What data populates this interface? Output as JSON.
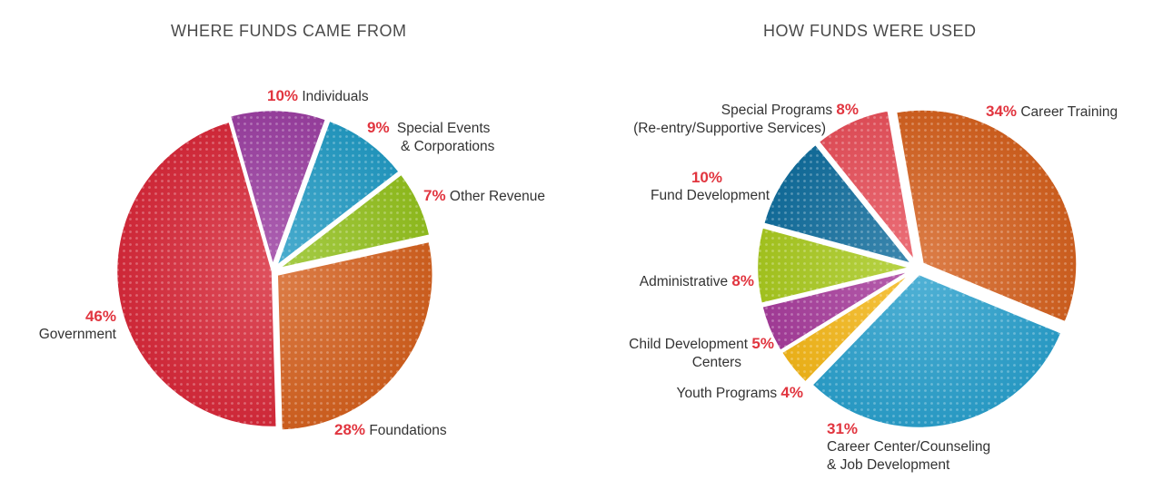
{
  "colors": {
    "accent_percent": "#e1353f",
    "title": "#4a4a4a",
    "label": "#333333"
  },
  "chart_data": [
    {
      "type": "pie",
      "title": "WHERE FUNDS CAME FROM",
      "categories": [
        "Individuals",
        "Special Events & Corporations",
        "Other Revenue",
        "Foundations",
        "Government"
      ],
      "values": [
        10,
        9,
        7,
        28,
        46
      ],
      "value_labels": [
        "10%",
        "9%",
        "7%",
        "28%",
        "46%"
      ],
      "label_lines": [
        [
          "Individuals"
        ],
        [
          "Special Events",
          "& Corporations"
        ],
        [
          "Other Revenue"
        ],
        [
          "Foundations"
        ],
        [
          "Government"
        ]
      ],
      "colors": [
        "#9b3fa1",
        "#239bc4",
        "#93c11e",
        "#d4611f",
        "#d8293a"
      ],
      "start_angle_deg": -16,
      "clockwise": true,
      "exploded": [
        "Individuals",
        "Special Events & Corporations",
        "Other Revenue",
        "Foundations"
      ]
    },
    {
      "type": "pie",
      "title": "HOW FUNDS WERE USED",
      "categories": [
        "Career Training",
        "Career Center/Counseling & Job Development",
        "Youth Programs",
        "Child Development Centers",
        "Administrative",
        "Fund Development",
        "Special Programs (Re-entry/Supportive Services)"
      ],
      "values": [
        34,
        31,
        4,
        5,
        8,
        10,
        8
      ],
      "value_labels": [
        "34%",
        "31%",
        "4%",
        "5%",
        "8%",
        "10%",
        "8%"
      ],
      "label_lines": [
        [
          "Career Training"
        ],
        [
          "Career Center/Counseling",
          "& Job Development"
        ],
        [
          "Youth Programs"
        ],
        [
          "Child Development",
          "Centers"
        ],
        [
          "Administrative"
        ],
        [
          "Fund Development"
        ],
        [
          "Special Programs",
          "(Re-entry/Supportive Services)"
        ]
      ],
      "colors": [
        "#d4611f",
        "#2aa0cc",
        "#f4b719",
        "#a63c9b",
        "#a8c91e",
        "#126e9e",
        "#e8505b"
      ],
      "start_angle_deg": -10,
      "clockwise": true,
      "exploded": "all"
    }
  ]
}
